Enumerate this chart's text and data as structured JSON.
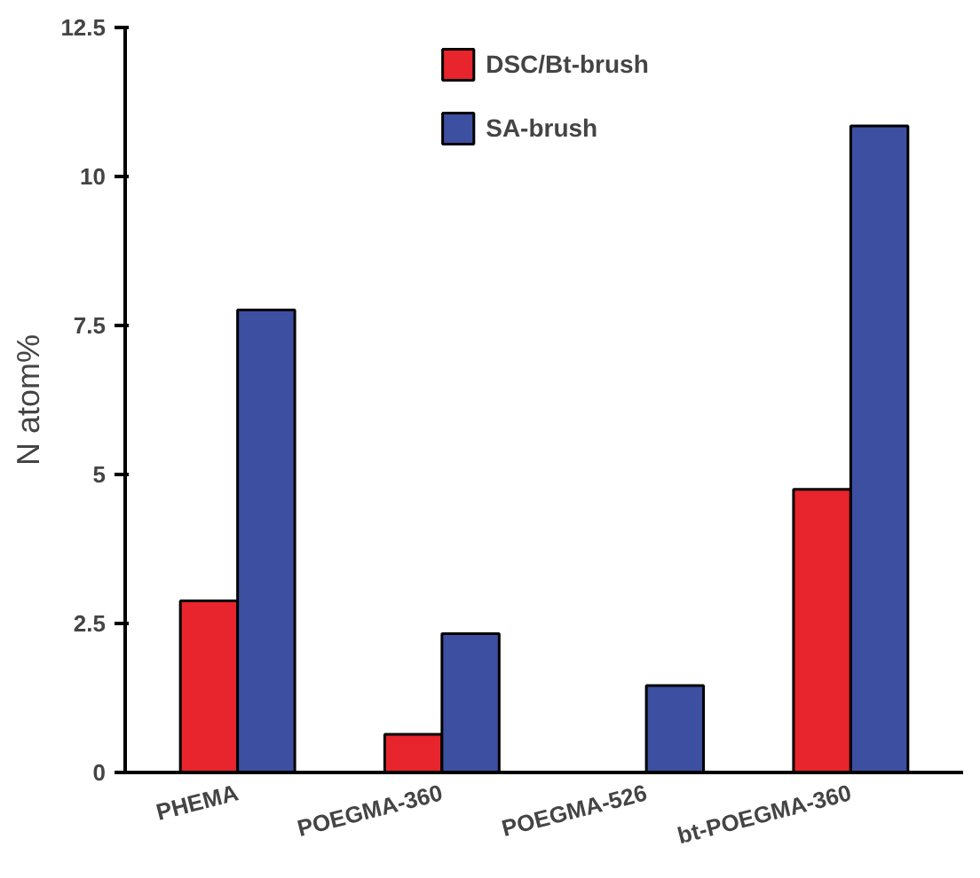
{
  "chart_data": {
    "type": "bar",
    "ylabel": "N atom%",
    "categories": [
      "PHEMA",
      "POEGMA-360",
      "POEGMA-526",
      "bt-POEGMA-360"
    ],
    "series": [
      {
        "name": "DSC/Bt-brush",
        "color": "#e8242c",
        "values": [
          2.88,
          0.64,
          null,
          4.75
        ]
      },
      {
        "name": "SA-brush",
        "color": "#3c4fa0",
        "values": [
          7.76,
          2.33,
          1.46,
          10.85
        ]
      }
    ],
    "ylim": [
      0,
      12.5
    ],
    "yticks": [
      0,
      2.5,
      5,
      7.5,
      10,
      12.5
    ],
    "grid": false,
    "legend": "top"
  }
}
